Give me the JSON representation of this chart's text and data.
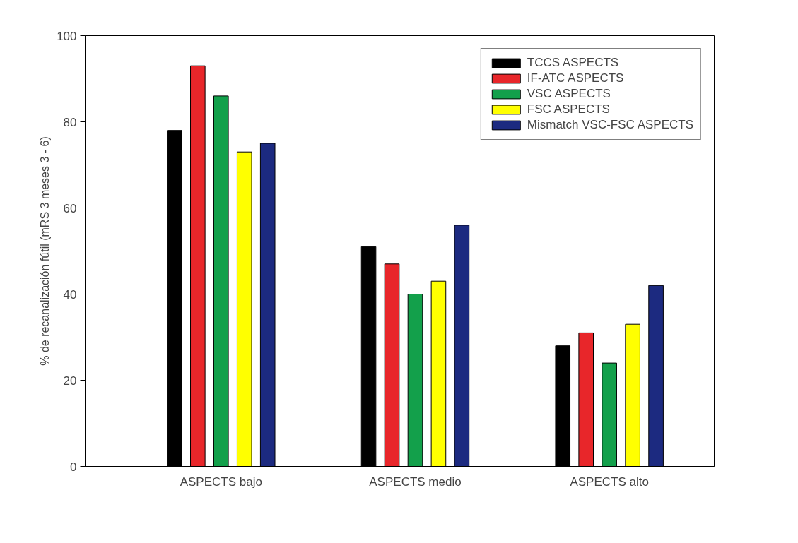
{
  "chart_data": {
    "type": "bar",
    "ylabel": "% de recanalización fútil (mRS 3 meses 3 - 6)",
    "categories": [
      "ASPECTS bajo",
      "ASPECTS medio",
      "ASPECTS alto"
    ],
    "series": [
      {
        "name": "TCCS ASPECTS",
        "color": "#000000",
        "values": [
          78,
          51,
          28
        ]
      },
      {
        "name": "IF-ATC ASPECTS",
        "color": "#e8262a",
        "values": [
          93,
          47,
          31
        ]
      },
      {
        "name": "VSC ASPECTS",
        "color": "#13a04b",
        "values": [
          86,
          40,
          24
        ]
      },
      {
        "name": "FSC ASPECTS",
        "color": "#ffff00",
        "values": [
          73,
          43,
          33
        ]
      },
      {
        "name": "Mismatch VSC-FSC ASPECTS",
        "color": "#1c2a80",
        "values": [
          75,
          56,
          42
        ]
      }
    ],
    "ylim": [
      0,
      100
    ],
    "yticks": [
      0,
      20,
      40,
      60,
      80,
      100
    ],
    "grid": false,
    "legend": "top right"
  }
}
